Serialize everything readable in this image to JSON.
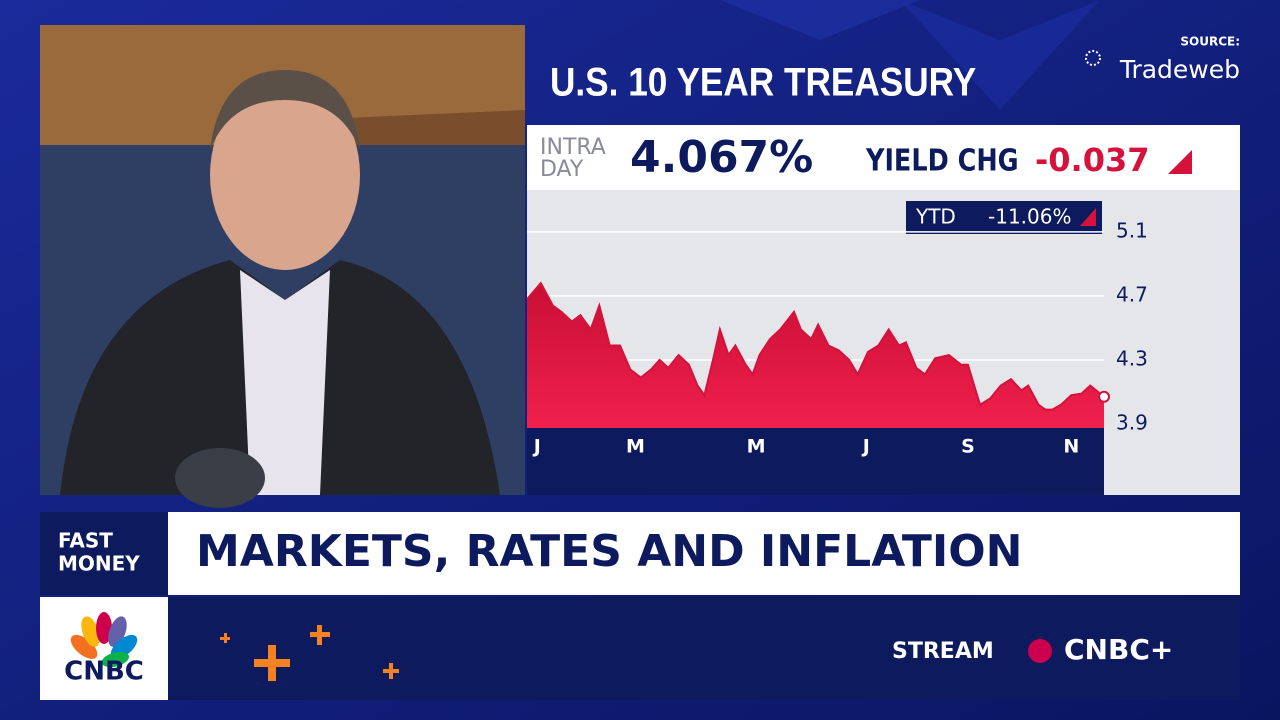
{
  "source": {
    "label": "SOURCE:",
    "name": "Tradeweb"
  },
  "chart_data": {
    "type": "area",
    "title": "U.S. 10 YEAR TREASURY",
    "intraday": {
      "label_lines": [
        "INTRA",
        "DAY"
      ],
      "value": 4.067,
      "value_label": "4.067%"
    },
    "yield_change": {
      "label": "YIELD CHG",
      "value": -0.037
    },
    "ytd": {
      "label": "YTD",
      "value": -11.06,
      "value_label": "-11.06%"
    },
    "x": [
      0,
      8,
      15,
      20,
      26,
      31,
      37,
      42,
      48,
      54,
      60,
      66,
      72,
      77,
      82,
      88,
      94,
      99,
      103,
      108,
      112,
      117,
      121,
      127,
      131,
      135,
      141,
      147,
      155,
      159,
      165,
      169,
      175,
      181,
      187,
      192,
      198,
      204,
      210,
      216,
      220,
      226,
      231,
      237,
      245,
      252,
      256,
      263,
      269,
      275,
      281,
      287,
      291,
      297,
      301,
      305,
      310,
      316,
      322,
      327,
      335
    ],
    "values": [
      4.68,
      4.78,
      4.64,
      4.6,
      4.54,
      4.58,
      4.49,
      4.64,
      4.39,
      4.39,
      4.24,
      4.19,
      4.24,
      4.3,
      4.25,
      4.33,
      4.27,
      4.14,
      4.08,
      4.3,
      4.49,
      4.33,
      4.39,
      4.27,
      4.21,
      4.33,
      4.43,
      4.49,
      4.6,
      4.49,
      4.43,
      4.52,
      4.39,
      4.36,
      4.3,
      4.21,
      4.35,
      4.39,
      4.49,
      4.39,
      4.41,
      4.25,
      4.21,
      4.31,
      4.33,
      4.27,
      4.27,
      4.02,
      4.06,
      4.14,
      4.18,
      4.11,
      4.14,
      4.02,
      3.99,
      3.99,
      4.02,
      4.08,
      4.09,
      4.14,
      4.07
    ],
    "color": "#d4123c",
    "xlim": [
      0,
      335
    ],
    "xticks": [
      {
        "value": 6,
        "label": "J"
      },
      {
        "value": 63,
        "label": "M"
      },
      {
        "value": 133,
        "label": "M"
      },
      {
        "value": 197,
        "label": "J"
      },
      {
        "value": 256,
        "label": "S"
      },
      {
        "value": 316,
        "label": "N"
      }
    ],
    "ylim": [
      3.875,
      5.33
    ],
    "yticks": [
      5.1,
      4.7,
      4.3,
      3.9
    ],
    "grid": true
  },
  "show": {
    "tag_lines": [
      "FAST",
      "MONEY"
    ],
    "headline": "MARKETS, RATES AND INFLATION"
  },
  "network": {
    "logo": "CNBC",
    "stream_label": "STREAM",
    "stream_brand": "CNBC+"
  }
}
